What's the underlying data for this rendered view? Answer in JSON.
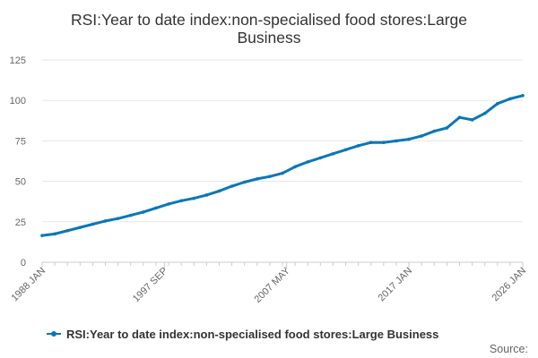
{
  "chart_data": {
    "type": "line",
    "title_lines": [
      "RSI:Year to date index:non-specialised food stores:Large",
      "Business"
    ],
    "xlabel": "",
    "ylabel": "",
    "y_ticks": [
      "0",
      "25",
      "50",
      "75",
      "100",
      "125"
    ],
    "ylim": [
      0,
      125
    ],
    "x_range": [
      1988.0,
      2026.0
    ],
    "x_ticks": [
      {
        "label": "1988 JAN",
        "value": 1988.0
      },
      {
        "label": "1997 SEP",
        "value": 1997.667
      },
      {
        "label": "2007 MAY",
        "value": 2007.333
      },
      {
        "label": "2017 JAN",
        "value": 2017.0
      },
      {
        "label": "2026 JAN",
        "value": 2026.0
      }
    ],
    "grid": true,
    "legend_position": "bottom",
    "color": "#0a77b8",
    "series": [
      {
        "name": "RSI:Year to date index:non-specialised food stores:Large Business",
        "x": [
          1988.0,
          1989.0,
          1990.0,
          1991.0,
          1992.0,
          1993.0,
          1994.0,
          1995.0,
          1996.0,
          1997.0,
          1998.0,
          1999.0,
          2000.0,
          2001.0,
          2002.0,
          2003.0,
          2004.0,
          2005.0,
          2006.0,
          2007.0,
          2008.0,
          2009.0,
          2010.0,
          2011.0,
          2012.0,
          2013.0,
          2014.0,
          2015.0,
          2016.0,
          2017.0,
          2018.0,
          2019.0,
          2020.0,
          2021.0,
          2022.0,
          2023.0,
          2024.0,
          2025.0,
          2026.0
        ],
        "values": [
          16.5,
          17.5,
          19.5,
          21.5,
          23.5,
          25.5,
          27.0,
          29.0,
          31.0,
          33.5,
          36.0,
          38.0,
          39.5,
          41.5,
          44.0,
          47.0,
          49.5,
          51.5,
          53.0,
          55.0,
          59.0,
          62.0,
          64.5,
          67.0,
          69.5,
          72.0,
          74.0,
          74.0,
          75.0,
          76.0,
          78.0,
          81.0,
          83.0,
          89.5,
          88.0,
          92.0,
          98.0,
          101.0,
          103.0
        ]
      }
    ]
  },
  "source_label": "Source:"
}
